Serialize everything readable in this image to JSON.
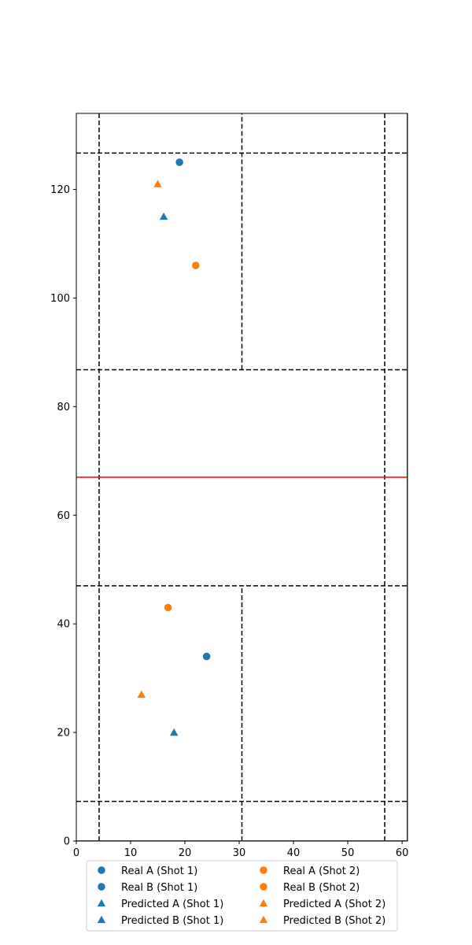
{
  "chart_data": {
    "type": "scatter",
    "title": "",
    "xlabel": "",
    "ylabel": "",
    "xlim": [
      0,
      61
    ],
    "ylim": [
      0,
      134
    ],
    "xticks": [
      0,
      10,
      20,
      30,
      40,
      50,
      60
    ],
    "yticks": [
      0,
      20,
      40,
      60,
      80,
      100,
      120
    ],
    "grid": false,
    "legend_position": "bottom-center",
    "legend_columns": 2,
    "court_lines": {
      "horizontal_dashed": [
        7.3,
        47.0,
        86.8,
        126.7
      ],
      "vertical_dashed": [
        4.2,
        30.5,
        56.8
      ],
      "net_y": 67,
      "center_line_segments": [
        [
          0,
          47.0
        ],
        [
          86.8,
          134
        ]
      ],
      "net_color": "#ff0000",
      "line_color": "#000000"
    },
    "series": [
      {
        "name": "Real A (Shot 1)",
        "marker": "circle",
        "color": "#1f77b4",
        "points": [
          [
            24.0,
            34.0
          ]
        ]
      },
      {
        "name": "Real B (Shot 1)",
        "marker": "circle",
        "color": "#1f77b4",
        "points": [
          [
            19.0,
            125.0
          ]
        ]
      },
      {
        "name": "Predicted A (Shot 1)",
        "marker": "triangle",
        "color": "#1f77b4",
        "points": [
          [
            18.0,
            20.0
          ]
        ]
      },
      {
        "name": "Predicted B (Shot 1)",
        "marker": "triangle",
        "color": "#1f77b4",
        "points": [
          [
            16.1,
            115.0
          ]
        ]
      },
      {
        "name": "Real A (Shot 2)",
        "marker": "circle",
        "color": "#ff7f0e",
        "points": [
          [
            16.9,
            43.0
          ]
        ]
      },
      {
        "name": "Real B (Shot 2)",
        "marker": "circle",
        "color": "#ff7f0e",
        "points": [
          [
            22.0,
            106.0
          ]
        ]
      },
      {
        "name": "Predicted A (Shot 2)",
        "marker": "triangle",
        "color": "#ff7f0e",
        "points": [
          [
            12.0,
            27.0
          ]
        ]
      },
      {
        "name": "Predicted B (Shot 2)",
        "marker": "triangle",
        "color": "#ff7f0e",
        "points": [
          [
            15.0,
            121.0
          ]
        ]
      }
    ]
  }
}
